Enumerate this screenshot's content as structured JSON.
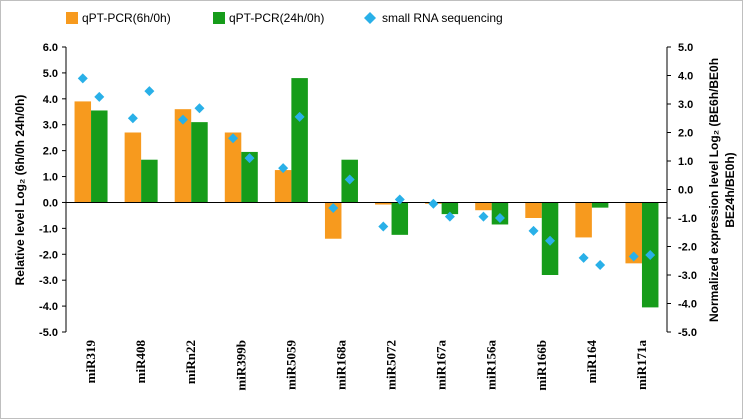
{
  "chart_data": {
    "type": "bar",
    "categories": [
      "miR319",
      "miR408",
      "miRn22",
      "miR399b",
      "miR5059",
      "miR168a",
      "miR5072",
      "miR167a",
      "miR156a",
      "miR166b",
      "miR164",
      "miR171a"
    ],
    "series": [
      {
        "name": "qPT-PCR(6h/0h)",
        "kind": "bar",
        "axis": "left",
        "color": "#F79A1E",
        "values": [
          3.9,
          2.7,
          3.6,
          2.7,
          1.25,
          -1.4,
          -0.08,
          -0.05,
          -0.3,
          -0.6,
          -1.35,
          -2.35
        ]
      },
      {
        "name": "qPT-PCR(24h/0h)",
        "kind": "bar",
        "axis": "left",
        "color": "#169C1A",
        "values": [
          3.55,
          1.65,
          3.1,
          1.95,
          4.8,
          1.65,
          -1.25,
          -0.45,
          -0.85,
          -2.8,
          -0.2,
          -4.05
        ]
      },
      {
        "name": "small RNA sequencing",
        "kind": "scatter",
        "axis": "right",
        "color": "#29B0E8",
        "values": [
          [
            3.9,
            3.25
          ],
          [
            2.5,
            3.45
          ],
          [
            2.45,
            2.85
          ],
          [
            1.8,
            1.1
          ],
          [
            0.75,
            2.55
          ],
          [
            -0.65,
            0.35
          ],
          [
            -1.3,
            -0.35
          ],
          [
            -0.5,
            -0.95
          ],
          [
            -0.95,
            -1.0
          ],
          [
            -1.45,
            -1.8
          ],
          [
            -2.4,
            -2.65
          ],
          [
            -2.35,
            -2.3
          ]
        ]
      }
    ],
    "left_axis": {
      "title": "Relative level Log₂ (6h/0h 24h/0h)",
      "ylim": [
        -5,
        6
      ],
      "ticks": [
        "6.0",
        "5.0",
        "4.0",
        "3.0",
        "2.0",
        "1.0",
        "0.0",
        "-1.0",
        "-2.0",
        "-3.0",
        "-4.0",
        "-5.0"
      ]
    },
    "right_axis": {
      "title_line1": "Normalized expression level Log₂ (BE6h/BE0h",
      "title_line2": "BE24h/BE0h)",
      "ylim": [
        -5,
        5
      ],
      "ticks": [
        "5.0",
        "4.0",
        "3.0",
        "2.0",
        "1.0",
        "0.0",
        "-1.0",
        "-2.0",
        "-3.0",
        "-4.0",
        "-5.0"
      ]
    },
    "legend": {
      "position": "top-left",
      "items": [
        "qPT-PCR(6h/0h)",
        "qPT-PCR(24h/0h)",
        "small RNA sequencing"
      ]
    },
    "grid": false
  }
}
